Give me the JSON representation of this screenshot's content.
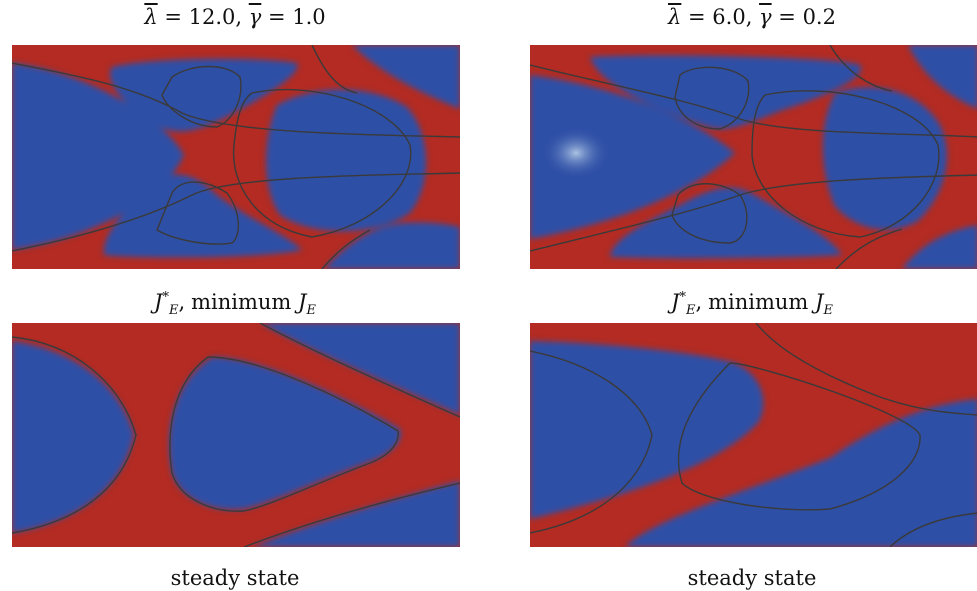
{
  "figure": {
    "colors": {
      "phase_a": "#2f4fa6",
      "phase_b": "#b32b22",
      "contour": "#3a3a3a",
      "interface": "#eed8a8"
    },
    "columns": [
      {
        "param_lambda": "12.0",
        "param_gamma": "1.0",
        "top_caption_suffix": ", minimum ",
        "top_caption_word": "minimum",
        "bottom_caption": "steady state"
      },
      {
        "param_lambda": "6.0",
        "param_gamma": "0.2",
        "top_caption_suffix": ", minimum ",
        "top_caption_word": "minimum",
        "bottom_caption": "steady state"
      }
    ]
  }
}
